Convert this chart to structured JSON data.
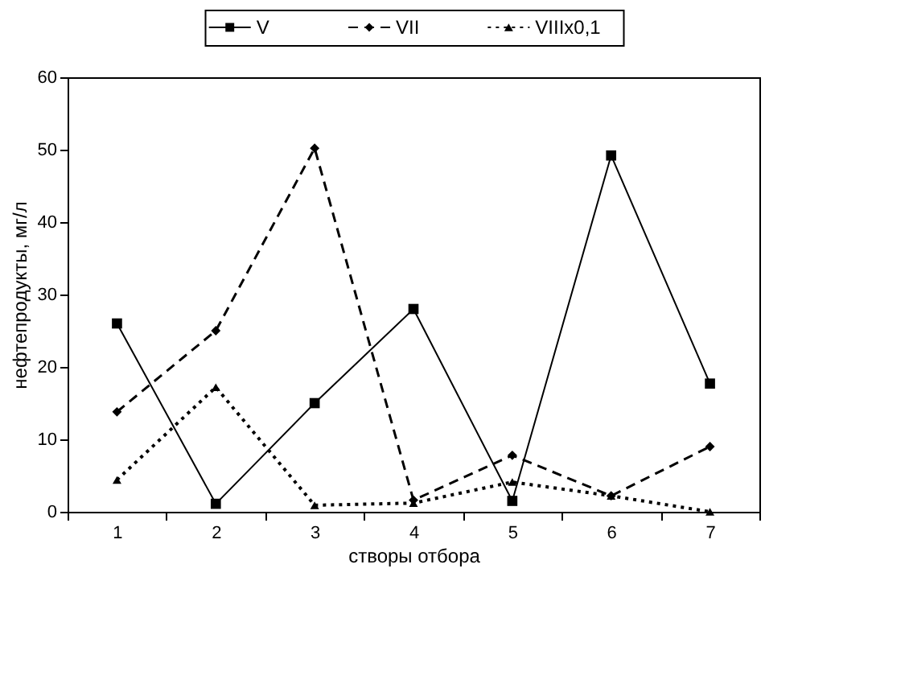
{
  "chart_data": {
    "type": "line",
    "xlabel": "створы отбора",
    "ylabel": "нефтепродукты, мг/л",
    "categories": [
      "1",
      "2",
      "3",
      "4",
      "5",
      "6",
      "7"
    ],
    "series": [
      {
        "name": "V",
        "color": "#000000",
        "line_style": "solid",
        "marker": "square",
        "values": [
          26,
          1.1,
          15,
          28,
          1.5,
          49.2,
          17.7
        ]
      },
      {
        "name": "VII",
        "color": "#000000",
        "line_style": "dashed",
        "marker": "diamond",
        "values": [
          13.8,
          25,
          50.2,
          1.6,
          7.8,
          2.2,
          9
        ]
      },
      {
        "name": "VIIIx0,1",
        "color": "#000000",
        "line_style": "dotted",
        "marker": "triangle",
        "values": [
          4.4,
          17.2,
          0.9,
          1.2,
          4.1,
          2.2,
          0
        ]
      }
    ],
    "ylim": [
      0,
      60
    ],
    "yticks": [
      0,
      10,
      20,
      30,
      40,
      50,
      60
    ],
    "grid": false,
    "legend": "top"
  }
}
